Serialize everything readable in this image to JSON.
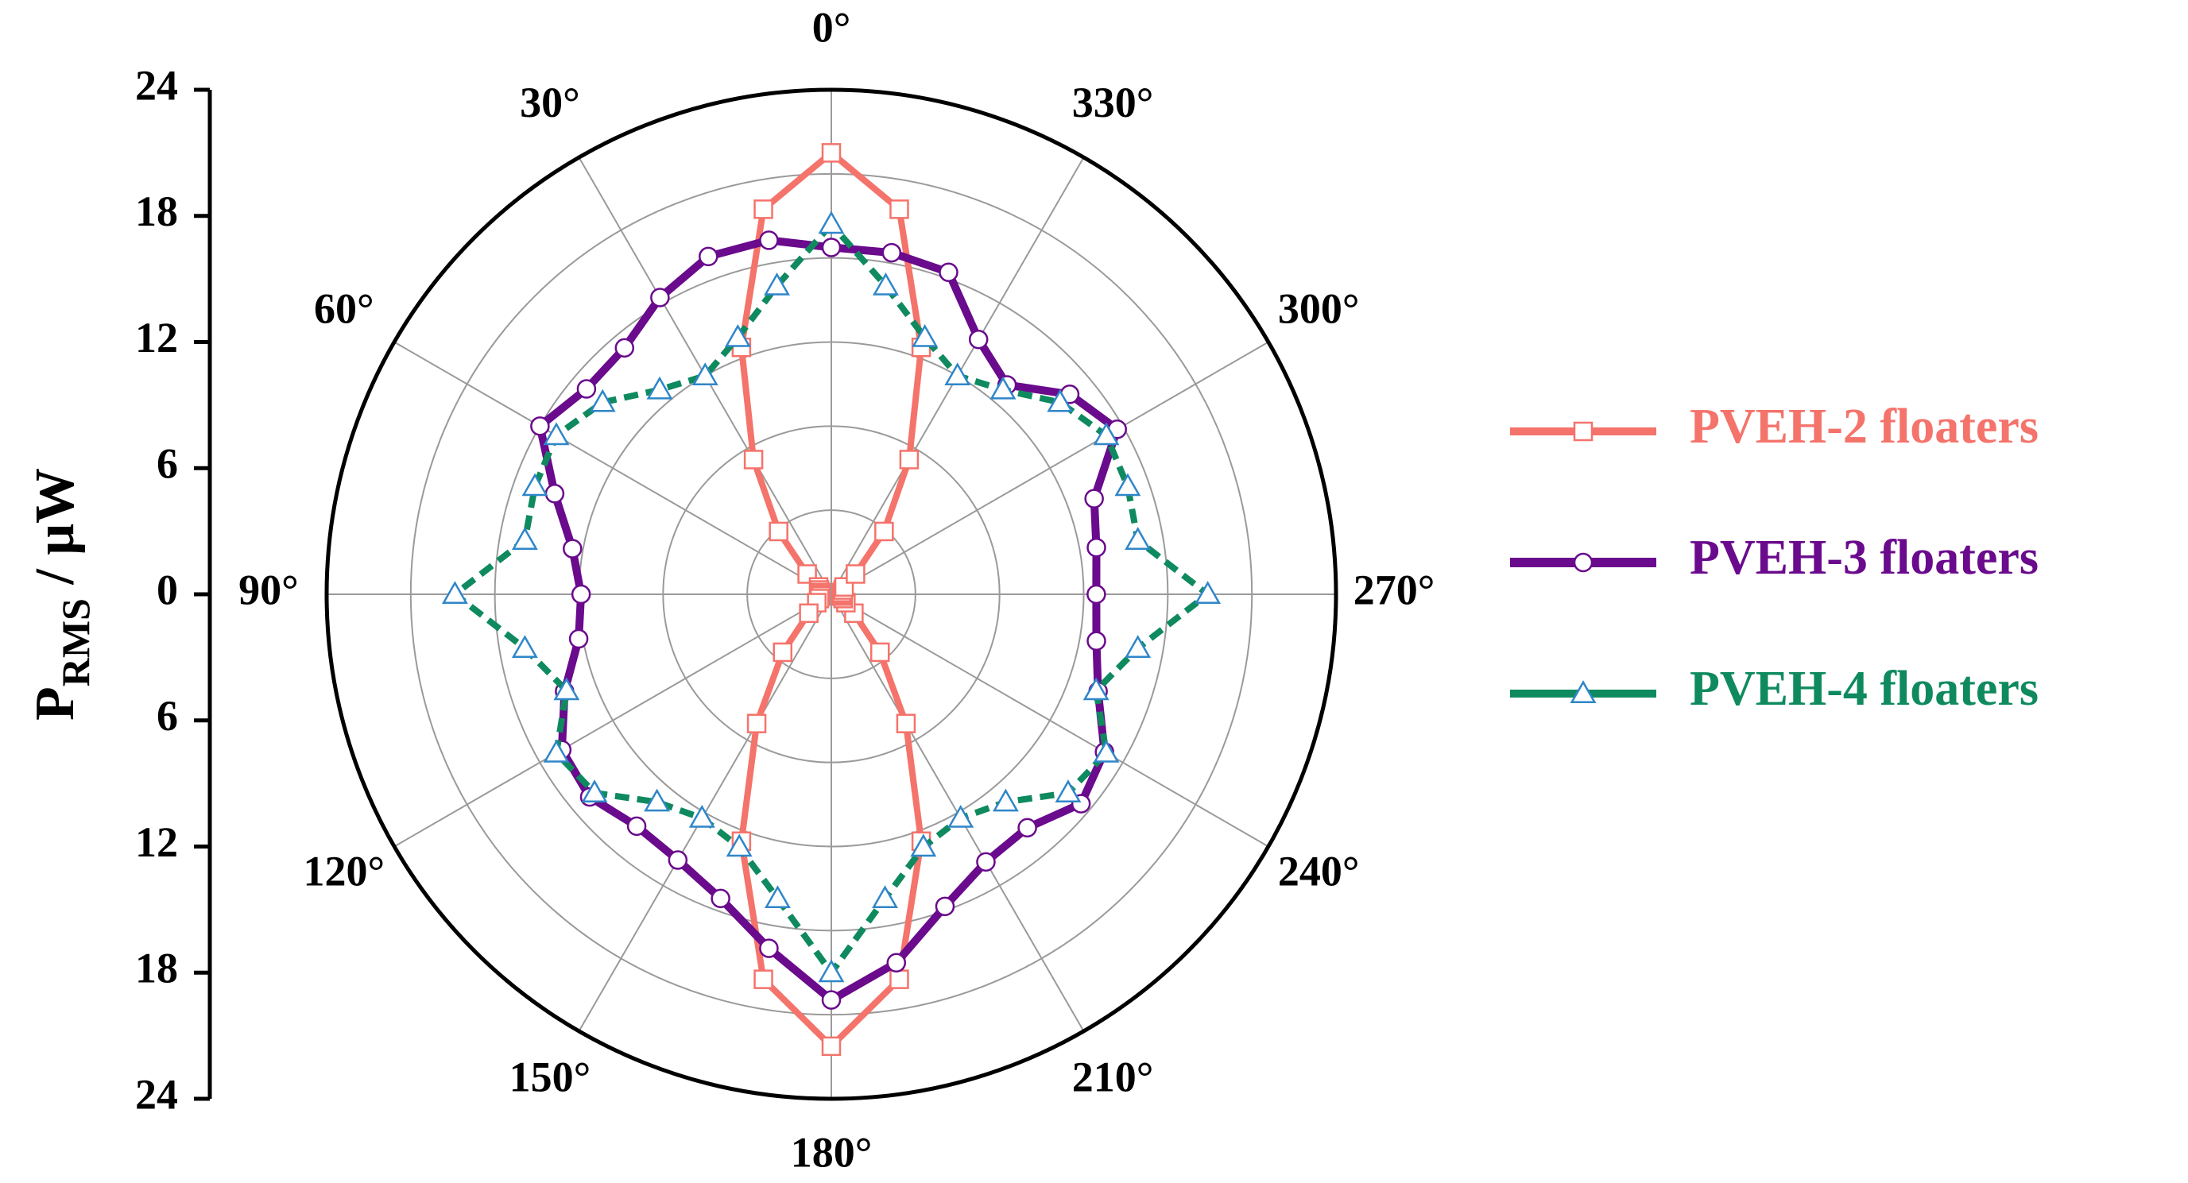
{
  "chart_data": {
    "type": "polar-line",
    "title": "",
    "ylabel_main": "P",
    "ylabel_sub": "RMS",
    "ylabel_unit": " / μW",
    "radial_range": [
      0,
      24
    ],
    "radial_ticks": [
      24,
      18,
      12,
      6,
      0,
      6,
      12,
      18,
      24
    ],
    "angle_direction": "counterclockwise",
    "zero_angle_at": "top",
    "angle_labels": [
      "0°",
      "30°",
      "60°",
      "90°",
      "120°",
      "150°",
      "180°",
      "210°",
      "240°",
      "270°",
      "300°",
      "330°"
    ],
    "angles": [
      0,
      10,
      20,
      30,
      40,
      50,
      60,
      70,
      80,
      90,
      100,
      110,
      120,
      130,
      140,
      150,
      160,
      170,
      180,
      190,
      200,
      210,
      220,
      230,
      240,
      250,
      260,
      270,
      280,
      290,
      300,
      310,
      320,
      330,
      340,
      350
    ],
    "grid": true,
    "legend_position": "right",
    "series": [
      {
        "name": "PVEH-2 floaters",
        "color": "#f4736b",
        "marker": "square",
        "values": [
          21.0,
          18.6,
          12.5,
          7.4,
          3.9,
          1.5,
          0.7,
          0.6,
          0.5,
          0.5,
          0.5,
          0.6,
          0.8,
          1.4,
          3.6,
          7.1,
          12.5,
          18.6,
          21.5,
          18.6,
          12.5,
          7.1,
          3.6,
          1.4,
          0.8,
          0.6,
          0.5,
          0.5,
          0.5,
          0.6,
          0.7,
          1.5,
          3.9,
          7.4,
          12.5,
          18.6
        ]
      },
      {
        "name": "PVEH-3 floaters",
        "color": "#6a0a8c",
        "marker": "circle",
        "values": [
          16.5,
          17.1,
          17.1,
          16.3,
          15.3,
          15.2,
          16.0,
          14.0,
          12.5,
          11.9,
          12.2,
          13.5,
          14.8,
          15.0,
          14.4,
          14.6,
          15.4,
          17.1,
          19.3,
          17.8,
          15.8,
          14.7,
          14.5,
          15.5,
          15.0,
          13.5,
          12.8,
          12.6,
          12.8,
          13.3,
          15.7,
          14.8,
          13.0,
          14.0,
          16.3,
          16.5
        ]
      },
      {
        "name": "PVEH-4 floaters",
        "color": "#0f8a5f",
        "marker": "triangle",
        "values": [
          17.6,
          14.9,
          13.0,
          12.0,
          12.7,
          14.2,
          15.1,
          15.0,
          14.8,
          17.9,
          14.8,
          13.4,
          15.1,
          14.7,
          12.9,
          12.3,
          12.8,
          14.7,
          18.0,
          14.7,
          12.8,
          12.3,
          12.9,
          14.7,
          15.1,
          13.4,
          14.8,
          17.9,
          14.8,
          15.0,
          15.1,
          14.2,
          12.7,
          12.0,
          13.0,
          14.9
        ]
      }
    ]
  }
}
